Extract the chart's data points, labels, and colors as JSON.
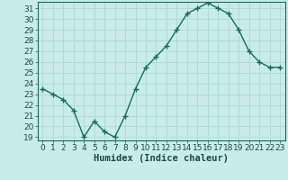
{
  "xlabel": "Humidex (Indice chaleur)",
  "x": [
    0,
    1,
    2,
    3,
    4,
    5,
    6,
    7,
    8,
    9,
    10,
    11,
    12,
    13,
    14,
    15,
    16,
    17,
    18,
    19,
    20,
    21,
    22,
    23
  ],
  "y": [
    23.5,
    23.0,
    22.5,
    21.5,
    19.0,
    20.5,
    19.5,
    19.0,
    21.0,
    23.5,
    25.5,
    26.5,
    27.5,
    29.0,
    30.5,
    31.0,
    31.5,
    31.0,
    30.5,
    29.0,
    27.0,
    26.0,
    25.5,
    25.5
  ],
  "line_color": "#1a6b5a",
  "marker": "+",
  "marker_size": 4,
  "marker_linewidth": 1.0,
  "line_width": 1.0,
  "background_color": "#c8ece8",
  "grid_color": "#b0d8d4",
  "ylim_min": 18.7,
  "ylim_max": 31.6,
  "xlim_min": -0.5,
  "xlim_max": 23.5,
  "yticks": [
    19,
    20,
    21,
    22,
    23,
    24,
    25,
    26,
    27,
    28,
    29,
    30,
    31
  ],
  "xticks": [
    0,
    1,
    2,
    3,
    4,
    5,
    6,
    7,
    8,
    9,
    10,
    11,
    12,
    13,
    14,
    15,
    16,
    17,
    18,
    19,
    20,
    21,
    22,
    23
  ],
  "tick_fontsize": 6.5,
  "xlabel_fontsize": 7.5,
  "tick_color": "#1a4a4a",
  "spine_color": "#1a6b5a"
}
